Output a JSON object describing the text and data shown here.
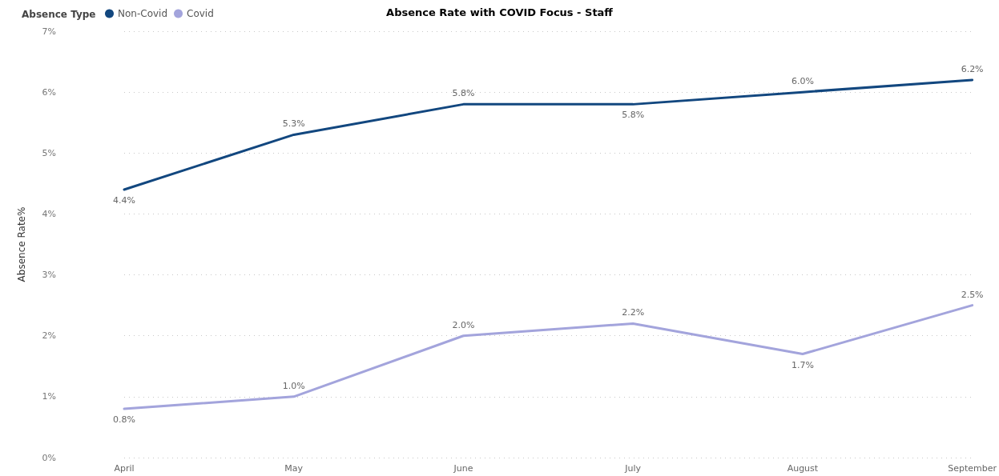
{
  "chart_data": {
    "type": "line",
    "title": "Absence Rate with COVID Focus - Staff",
    "ylabel": "Absence Rate%",
    "legend_title": "Absence Type",
    "legend": "top left",
    "grid": "y",
    "marker": "none",
    "line_style": "solid",
    "categories": [
      "April",
      "May",
      "June",
      "July",
      "August",
      "September"
    ],
    "series": [
      {
        "name": "Non-Covid",
        "color": "#12477f",
        "values": [
          4.4,
          5.3,
          5.8,
          5.8,
          6.0,
          6.2
        ],
        "value_labels": [
          "4.4%",
          "5.3%",
          "5.8%",
          "5.8%",
          "6.0%",
          "6.2%"
        ]
      },
      {
        "name": "Covid",
        "color": "#a3a4dc",
        "values": [
          0.8,
          1.0,
          2.0,
          2.2,
          1.7,
          2.5
        ],
        "value_labels": [
          "0.8%",
          "1.0%",
          "2.0%",
          "2.2%",
          "1.7%",
          "2.5%"
        ]
      }
    ],
    "ylim": [
      0,
      7
    ],
    "yticks": [
      {
        "value": 0,
        "label": "0%"
      },
      {
        "value": 1,
        "label": "1%"
      },
      {
        "value": 2,
        "label": "2%"
      },
      {
        "value": 3,
        "label": "3%"
      },
      {
        "value": 4,
        "label": "4%"
      },
      {
        "value": 5,
        "label": "5%"
      },
      {
        "value": 6,
        "label": "6%"
      },
      {
        "value": 7,
        "label": "7%"
      }
    ]
  }
}
